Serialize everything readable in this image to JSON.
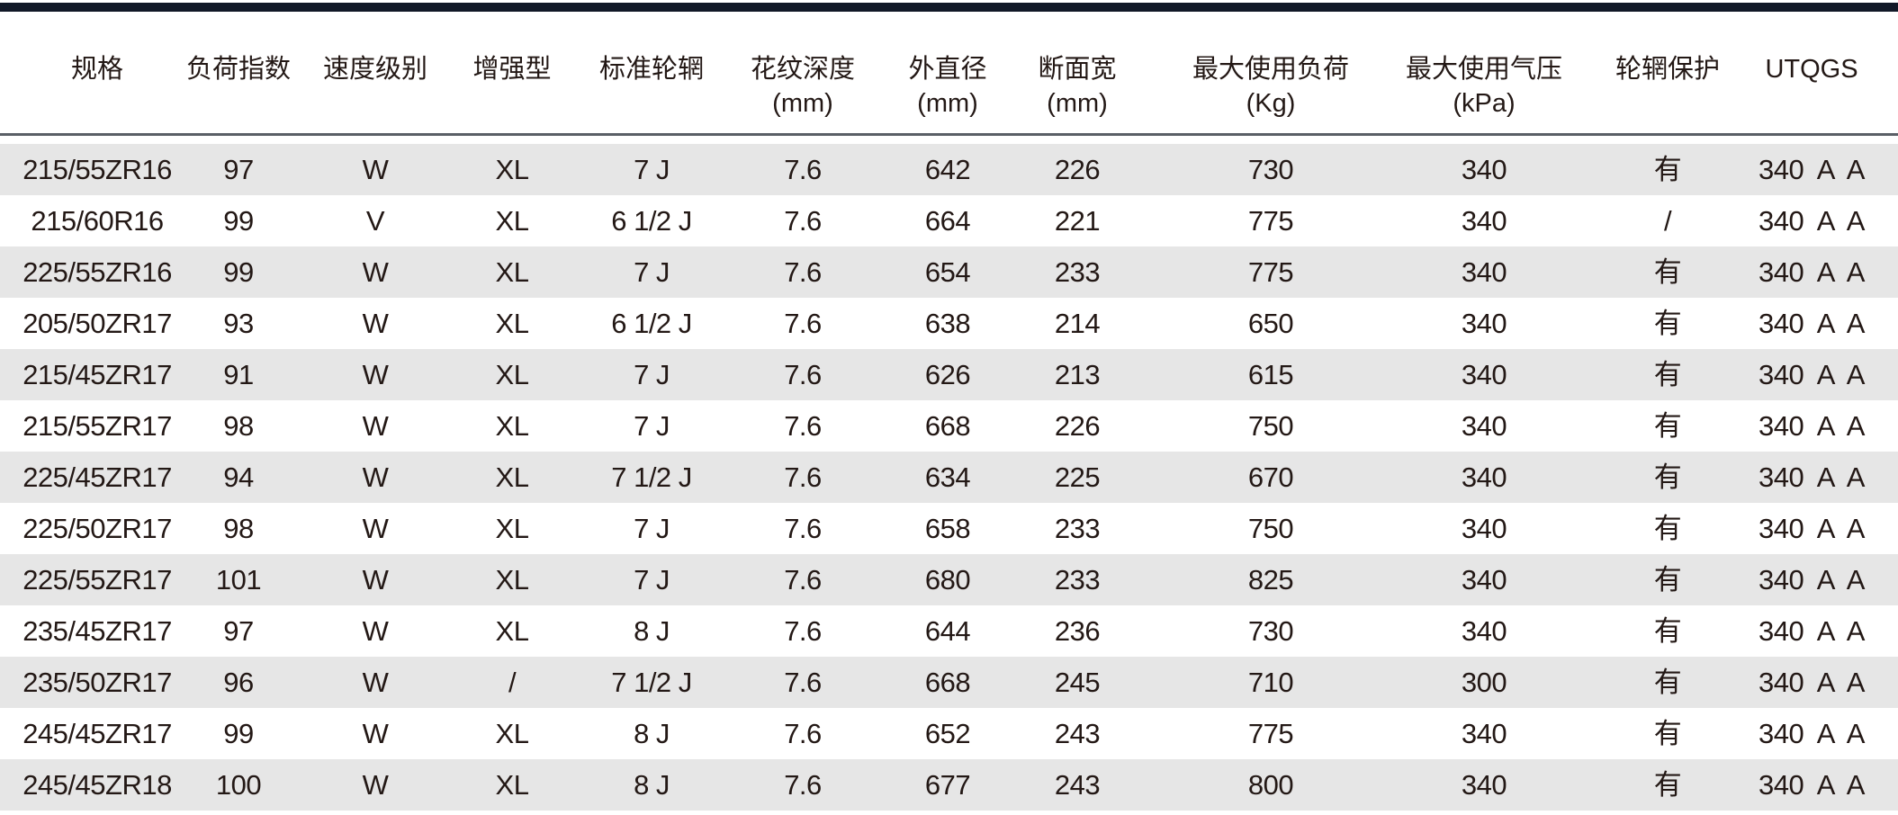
{
  "colors": {
    "top_bar": "#111827",
    "row_shade": "#e6e6e6",
    "header_rule": "#5a5f66",
    "text": "#231815"
  },
  "headers": [
    {
      "line1": "规格",
      "line2": ""
    },
    {
      "line1": "负荷指数",
      "line2": ""
    },
    {
      "line1": "速度级别",
      "line2": ""
    },
    {
      "line1": "增强型",
      "line2": ""
    },
    {
      "line1": "标准轮辋",
      "line2": ""
    },
    {
      "line1": "花纹深度",
      "line2": "(mm)"
    },
    {
      "line1": "外直径",
      "line2": "(mm)"
    },
    {
      "line1": "断面宽",
      "line2": "(mm)"
    },
    {
      "line1": "最大使用负荷",
      "line2": "(Kg)"
    },
    {
      "line1": "最大使用气压",
      "line2": "(kPa)"
    },
    {
      "line1": "轮辋保护",
      "line2": ""
    },
    {
      "line1": "UTQGS",
      "line2": ""
    }
  ],
  "rows": [
    [
      "215/55ZR16",
      "97",
      "W",
      "XL",
      "7 J",
      "7.6",
      "642",
      "226",
      "730",
      "340",
      "有",
      "340  A  A"
    ],
    [
      "215/60R16",
      "99",
      "V",
      "XL",
      "6 1/2 J",
      "7.6",
      "664",
      "221",
      "775",
      "340",
      "/",
      "340  A  A"
    ],
    [
      "225/55ZR16",
      "99",
      "W",
      "XL",
      "7 J",
      "7.6",
      "654",
      "233",
      "775",
      "340",
      "有",
      "340  A  A"
    ],
    [
      "205/50ZR17",
      "93",
      "W",
      "XL",
      "6 1/2 J",
      "7.6",
      "638",
      "214",
      "650",
      "340",
      "有",
      "340  A  A"
    ],
    [
      "215/45ZR17",
      "91",
      "W",
      "XL",
      "7 J",
      "7.6",
      "626",
      "213",
      "615",
      "340",
      "有",
      "340  A  A"
    ],
    [
      "215/55ZR17",
      "98",
      "W",
      "XL",
      "7 J",
      "7.6",
      "668",
      "226",
      "750",
      "340",
      "有",
      "340  A  A"
    ],
    [
      "225/45ZR17",
      "94",
      "W",
      "XL",
      "7 1/2 J",
      "7.6",
      "634",
      "225",
      "670",
      "340",
      "有",
      "340  A  A"
    ],
    [
      "225/50ZR17",
      "98",
      "W",
      "XL",
      "7 J",
      "7.6",
      "658",
      "233",
      "750",
      "340",
      "有",
      "340  A  A"
    ],
    [
      "225/55ZR17",
      "101",
      "W",
      "XL",
      "7 J",
      "7.6",
      "680",
      "233",
      "825",
      "340",
      "有",
      "340  A  A"
    ],
    [
      "235/45ZR17",
      "97",
      "W",
      "XL",
      "8 J",
      "7.6",
      "644",
      "236",
      "730",
      "340",
      "有",
      "340  A  A"
    ],
    [
      "235/50ZR17",
      "96",
      "W",
      "/",
      "7 1/2 J",
      "7.6",
      "668",
      "245",
      "710",
      "300",
      "有",
      "340  A  A"
    ],
    [
      "245/45ZR17",
      "99",
      "W",
      "XL",
      "8 J",
      "7.6",
      "652",
      "243",
      "775",
      "340",
      "有",
      "340  A  A"
    ],
    [
      "245/45ZR18",
      "100",
      "W",
      "XL",
      "8 J",
      "7.6",
      "677",
      "243",
      "800",
      "340",
      "有",
      "340  A  A"
    ]
  ]
}
